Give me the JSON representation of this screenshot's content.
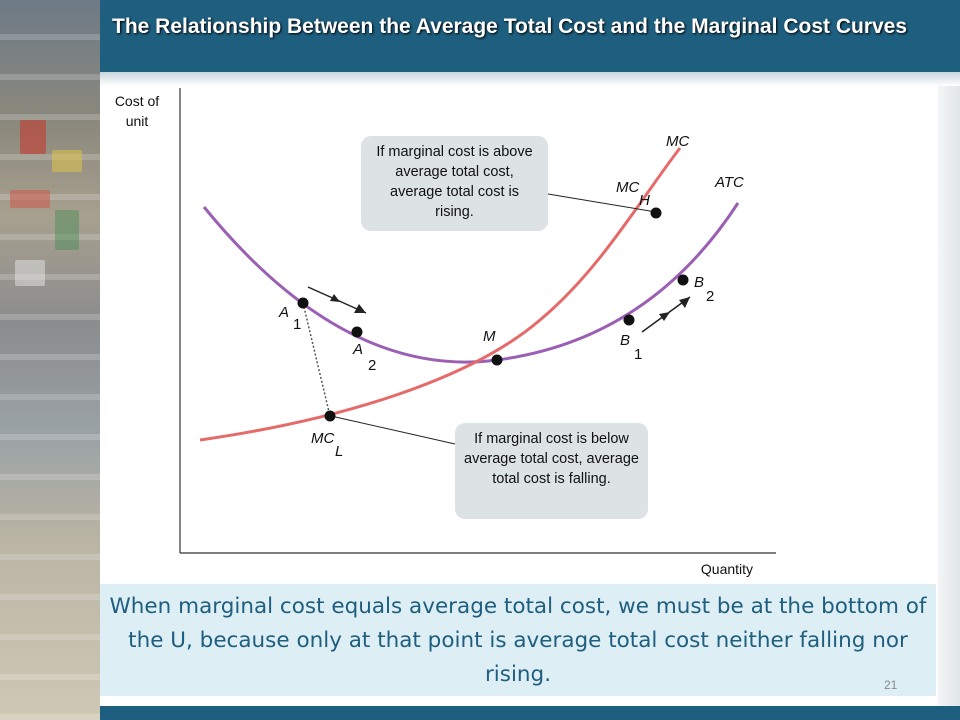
{
  "slide": {
    "title": "The Relationship Between the Average Total Cost and the Marginal Cost Curves",
    "page_number": "21",
    "caption": "When marginal cost equals average total cost, we must be at the bottom of the U, because only at that point is average total cost neither falling nor rising."
  },
  "diagram": {
    "y_axis_label_line1": "Cost of",
    "y_axis_label_line2": "unit",
    "x_axis_label": "Quantity",
    "curves": {
      "mc": "MC",
      "atc": "ATC"
    },
    "points": {
      "a1": {
        "letter": "A",
        "sub": "1"
      },
      "a2": {
        "letter": "A",
        "sub": "2"
      },
      "b1": {
        "letter": "B",
        "sub": "1"
      },
      "b2": {
        "letter": "B",
        "sub": "2"
      },
      "m": {
        "letter": "M"
      },
      "mch": {
        "letter": "MC",
        "sub": "H"
      },
      "mcl": {
        "letter": "MC",
        "sub": "L"
      }
    },
    "callouts": {
      "above": "If marginal cost is above average total cost, average total cost is rising.",
      "below": "If marginal cost is below average total cost, average total cost is falling."
    },
    "colors": {
      "atc": "#9b5fb4",
      "mc": "#e56b6b",
      "axis": "#333333"
    }
  }
}
